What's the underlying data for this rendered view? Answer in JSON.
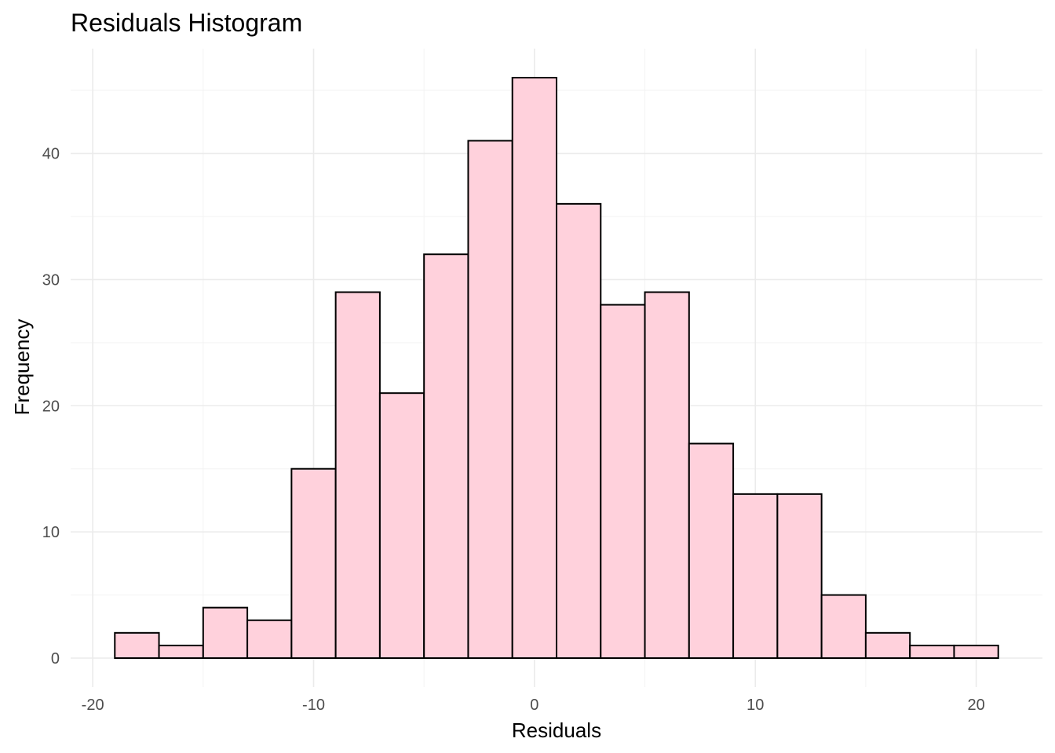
{
  "chart_data": {
    "type": "bar",
    "title": "Residuals Histogram",
    "xlabel": "Residuals",
    "ylabel": "Frequency",
    "bin_width": 2,
    "bins": [
      {
        "x0": -19,
        "x1": -17,
        "count": 2
      },
      {
        "x0": -17,
        "x1": -15,
        "count": 1
      },
      {
        "x0": -15,
        "x1": -13,
        "count": 4
      },
      {
        "x0": -13,
        "x1": -11,
        "count": 3
      },
      {
        "x0": -11,
        "x1": -9,
        "count": 15
      },
      {
        "x0": -9,
        "x1": -7,
        "count": 29
      },
      {
        "x0": -7,
        "x1": -5,
        "count": 21
      },
      {
        "x0": -5,
        "x1": -3,
        "count": 32
      },
      {
        "x0": -3,
        "x1": -1,
        "count": 41
      },
      {
        "x0": -1,
        "x1": 1,
        "count": 46
      },
      {
        "x0": 1,
        "x1": 3,
        "count": 36
      },
      {
        "x0": 3,
        "x1": 5,
        "count": 28
      },
      {
        "x0": 5,
        "x1": 7,
        "count": 29
      },
      {
        "x0": 7,
        "x1": 9,
        "count": 17
      },
      {
        "x0": 9,
        "x1": 11,
        "count": 13
      },
      {
        "x0": 11,
        "x1": 13,
        "count": 13
      },
      {
        "x0": 13,
        "x1": 15,
        "count": 5
      },
      {
        "x0": 15,
        "x1": 17,
        "count": 2
      },
      {
        "x0": 17,
        "x1": 19,
        "count": 1
      },
      {
        "x0": 19,
        "x1": 21,
        "count": 1
      }
    ],
    "xlim": [
      -21,
      23
    ],
    "ylim": [
      -2.3,
      48.3
    ],
    "x_ticks": [
      -20,
      -10,
      0,
      10,
      20
    ],
    "x_tick_labels": [
      "-20",
      "-10",
      "0",
      "10",
      "20"
    ],
    "y_ticks": [
      0,
      10,
      20,
      30,
      40
    ],
    "y_tick_labels": [
      "0",
      "10",
      "20",
      "30",
      "40"
    ],
    "grid": true,
    "legend": "none",
    "colors": {
      "bar_fill": "#ffd1dc",
      "bar_stroke": "#000000",
      "grid": "#ebebeb"
    }
  }
}
